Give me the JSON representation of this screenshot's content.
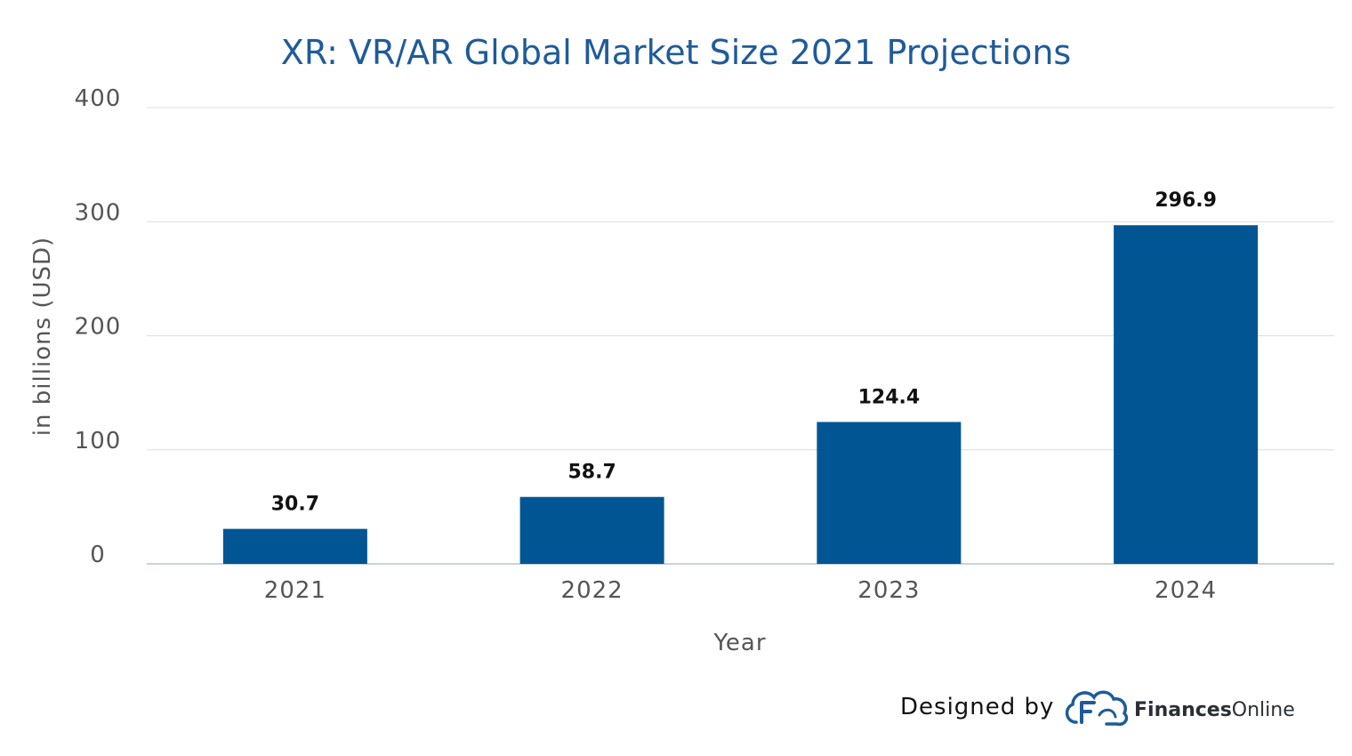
{
  "chart_data": {
    "type": "bar",
    "title": "XR: VR/AR Global Market Size 2021 Projections",
    "xlabel": "Year",
    "ylabel": "in billions (USD)",
    "categories": [
      "2021",
      "2022",
      "2023",
      "2024"
    ],
    "values": [
      30.7,
      58.7,
      124.4,
      296.9
    ],
    "data_labels": [
      "30.7",
      "58.7",
      "124.4",
      "296.9"
    ],
    "ylim": [
      0,
      400
    ],
    "yticks": [
      "0",
      "100",
      "200",
      "300",
      "400"
    ],
    "ytick_values": [
      0,
      100,
      200,
      300,
      400
    ],
    "grid": true,
    "legend": "none",
    "bar_color": "#015592"
  },
  "credit": {
    "prefix": "Designed by",
    "brand_bold": "Finances",
    "brand_normal": "Online",
    "logo_icon": "cloud-f-icon"
  }
}
